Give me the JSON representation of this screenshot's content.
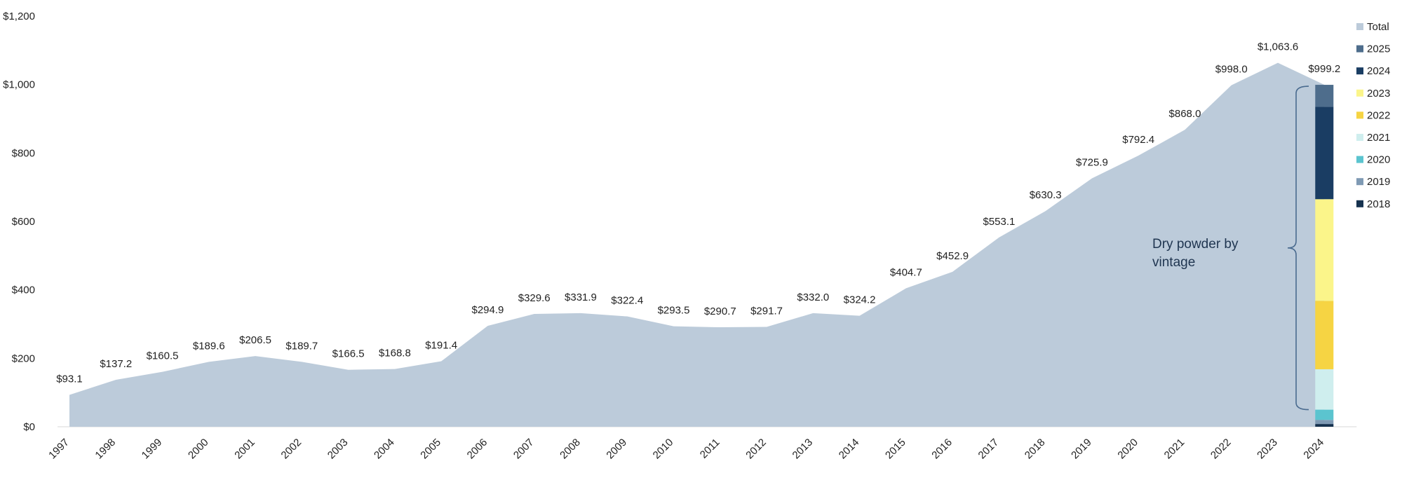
{
  "chart_data": {
    "type": "area",
    "title": "",
    "xlabel": "",
    "ylabel": "",
    "ylim": [
      0,
      1200
    ],
    "yticks": [
      0,
      200,
      400,
      600,
      800,
      1000,
      1200
    ],
    "ytick_labels": [
      "$0",
      "$200",
      "$400",
      "$600",
      "$800",
      "$1,000",
      "$1,200"
    ],
    "grid": false,
    "legend_position": "right",
    "categories": [
      "1997",
      "1998",
      "1999",
      "2000",
      "2001",
      "2002",
      "2003",
      "2004",
      "2005",
      "2006",
      "2007",
      "2008",
      "2009",
      "2010",
      "2011",
      "2012",
      "2013",
      "2014",
      "2015",
      "2016",
      "2017",
      "2018",
      "2019",
      "2020",
      "2021",
      "2022",
      "2023",
      "2024"
    ],
    "series": [
      {
        "name": "Total",
        "color": "#bccbda",
        "values": [
          93.1,
          137.2,
          160.5,
          189.6,
          206.5,
          189.7,
          166.5,
          168.8,
          191.4,
          294.9,
          329.6,
          331.9,
          322.4,
          293.5,
          290.7,
          291.7,
          332.0,
          324.2,
          404.7,
          452.9,
          553.1,
          630.3,
          725.9,
          792.4,
          868.0,
          998.0,
          1063.6,
          999.2
        ],
        "data_labels": [
          "$93.1",
          "$137.2",
          "$160.5",
          "$189.6",
          "$206.5",
          "$189.7",
          "$166.5",
          "$168.8",
          "$191.4",
          "$294.9",
          "$329.6",
          "$331.9",
          "$322.4",
          "$293.5",
          "$290.7",
          "$291.7",
          "$332.0",
          "$324.2",
          "$404.7",
          "$452.9",
          "$553.1",
          "$630.3",
          "$725.9",
          "$792.4",
          "$868.0",
          "$998.0",
          "$1,063.6",
          "$999.2"
        ]
      }
    ],
    "stack": {
      "category": "2024",
      "segments": [
        {
          "name": "2018",
          "value": 8,
          "color": "#16324f"
        },
        {
          "name": "2019",
          "value": 12,
          "color": "#7f9ab4"
        },
        {
          "name": "2020",
          "value": 30,
          "color": "#5bc4cf"
        },
        {
          "name": "2021",
          "value": 118,
          "color": "#cfeeee"
        },
        {
          "name": "2022",
          "value": 200,
          "color": "#f6d443"
        },
        {
          "name": "2023",
          "value": 297,
          "color": "#fbf58a"
        },
        {
          "name": "2024",
          "value": 270,
          "color": "#1a3d63"
        },
        {
          "name": "2025",
          "value": 64.2,
          "color": "#4e6d8c"
        }
      ]
    },
    "legend": [
      {
        "name": "Total",
        "color": "#bccbda"
      },
      {
        "name": "2025",
        "color": "#4e6d8c"
      },
      {
        "name": "2024",
        "color": "#1a3d63"
      },
      {
        "name": "2023",
        "color": "#fbf58a"
      },
      {
        "name": "2022",
        "color": "#f6d443"
      },
      {
        "name": "2021",
        "color": "#cfeeee"
      },
      {
        "name": "2020",
        "color": "#5bc4cf"
      },
      {
        "name": "2019",
        "color": "#7f9ab4"
      },
      {
        "name": "2018",
        "color": "#16324f"
      }
    ],
    "annotation": {
      "line1": "Dry powder by",
      "line2": "vintage"
    }
  }
}
